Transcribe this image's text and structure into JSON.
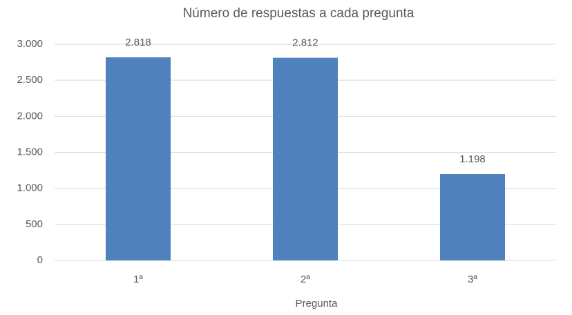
{
  "chart_data": {
    "type": "bar",
    "title": "Número de respuestas a cada pregunta",
    "categories": [
      "1ª",
      "2ª",
      "3ª"
    ],
    "values": [
      2818,
      2812,
      1198
    ],
    "value_labels": [
      "2.818",
      "2.812",
      "1.198"
    ],
    "color": "#4f81bd",
    "x_label": "Pregunta",
    "ylim": [
      0,
      3000
    ],
    "yticks": [
      0,
      500,
      {
        "value": 1000,
        "label": "1.000"
      },
      {
        "value": 1500,
        "label": "1.500"
      },
      {
        "value": 2000,
        "label": "2.000"
      },
      {
        "value": 2500,
        "label": "2.500"
      },
      {
        "value": 3000,
        "label": "3.000"
      }
    ],
    "grid": true
  }
}
